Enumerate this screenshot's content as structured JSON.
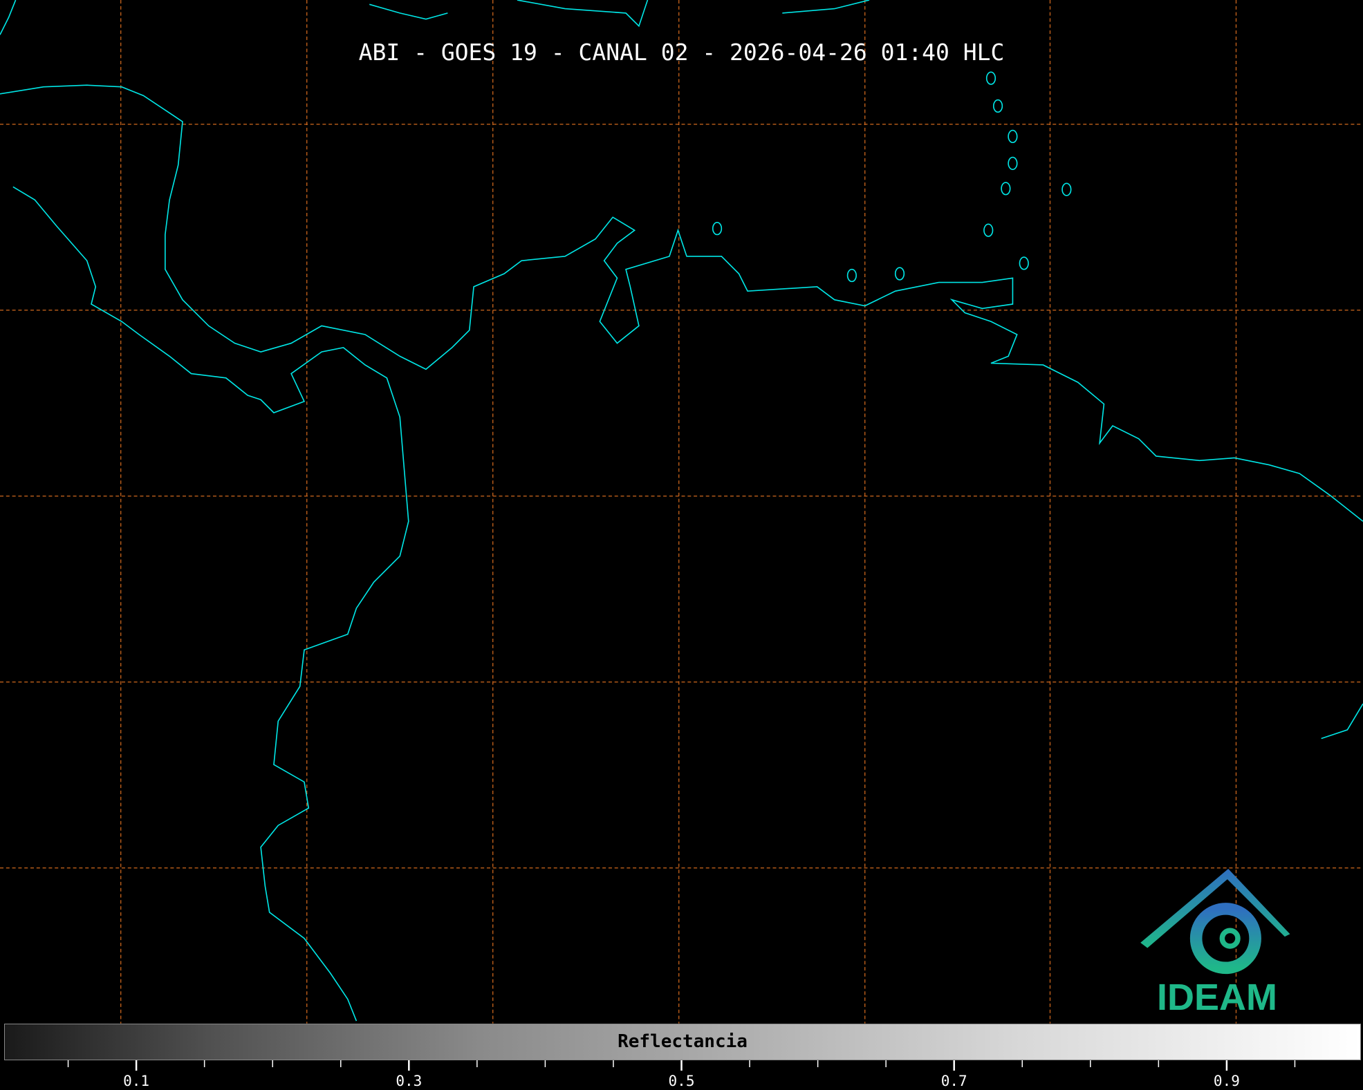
{
  "title": "ABI - GOES 19 - CANAL 02 - 2026-04-26 01:40 HLC",
  "logo": {
    "text": "IDEAM",
    "color": "#1fb889",
    "roof_color": "#2f6fc0"
  },
  "colorbar": {
    "label": "Reflectancia",
    "range": [
      0,
      1
    ],
    "colormap": "grayscale",
    "major_ticks": [
      {
        "value": 0.1,
        "label": "0.1"
      },
      {
        "value": 0.3,
        "label": "0.3"
      },
      {
        "value": 0.5,
        "label": "0.5"
      },
      {
        "value": 0.7,
        "label": "0.7"
      },
      {
        "value": 0.9,
        "label": "0.9"
      }
    ],
    "minor_tick_step": 0.05
  },
  "colors": {
    "background": "#000000",
    "coastline": "#00e5e5",
    "gridlines": "#d2691e"
  }
}
